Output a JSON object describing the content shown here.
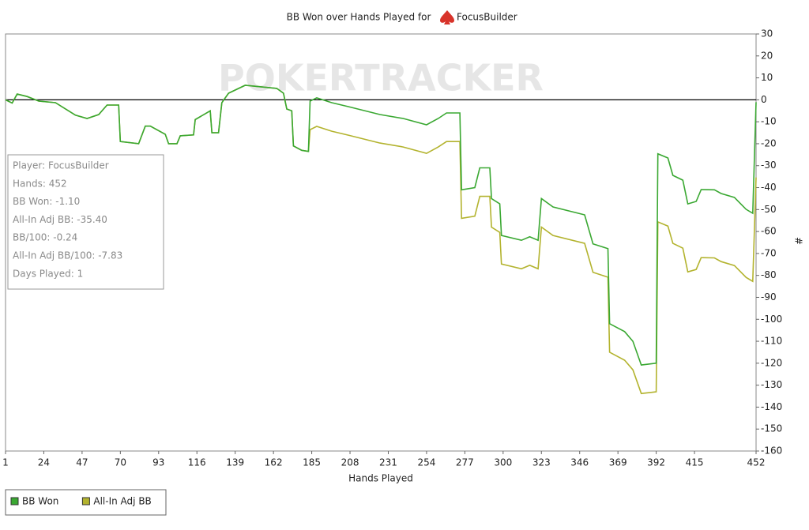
{
  "chart_data": {
    "type": "line",
    "title": "BB Won over Hands Played for",
    "player": "FocusBuilder",
    "watermark": "POKERTRACKER",
    "x_label": "Hands Played",
    "y_label": "#",
    "x": [
      1,
      5,
      8,
      14,
      21,
      31,
      43,
      50,
      57,
      62,
      69,
      70,
      81,
      85,
      88,
      97,
      99,
      104,
      106,
      114,
      115,
      124,
      125,
      129,
      131,
      135,
      145,
      164,
      168,
      170,
      173,
      174,
      179,
      183,
      184,
      188,
      197,
      207,
      226,
      240,
      254,
      261,
      266,
      274,
      275,
      283,
      286,
      292,
      293,
      298,
      299,
      311,
      316,
      321,
      323,
      330,
      349,
      354,
      363,
      364,
      373,
      378,
      383,
      392,
      393,
      399,
      402,
      408,
      411,
      416,
      419,
      427,
      431,
      439,
      446,
      450,
      452
    ],
    "series": [
      {
        "name": "BB Won",
        "color": "#3aa832",
        "values": [
          0,
          -1.5,
          2.6,
          1.5,
          -0.6,
          -1.3,
          -7,
          -8.5,
          -6.7,
          -2.4,
          -2.4,
          -19,
          -20,
          -12,
          -12,
          -15.7,
          -20,
          -20,
          -16.4,
          -16,
          -9,
          -5,
          -15,
          -15,
          -1.3,
          3,
          6.6,
          5.2,
          3,
          -4.2,
          -5,
          -21,
          -23,
          -23.5,
          -0.6,
          0.9,
          -1.3,
          -3.1,
          -6.7,
          -8.5,
          -11.4,
          -8.5,
          -6,
          -6,
          -41,
          -40,
          -31,
          -31,
          -45,
          -47.4,
          -61.8,
          -64,
          -62.4,
          -64,
          -45,
          -48.8,
          -52.4,
          -65.6,
          -67.8,
          -102,
          -105.6,
          -110,
          -120.8,
          -120,
          -24.6,
          -26.5,
          -34.4,
          -36.6,
          -47.4,
          -46.3,
          -40.9,
          -41,
          -42.7,
          -44.5,
          -49.9,
          -51.7,
          -1.1
        ]
      },
      {
        "name": "All-In Adj BB",
        "color": "#b3b32e",
        "values": [
          0,
          -1.5,
          2.6,
          1.5,
          -0.6,
          -1.3,
          -7,
          -8.5,
          -6.7,
          -2.4,
          -2.4,
          -19,
          -20,
          -12,
          -12,
          -15.7,
          -20,
          -20,
          -16.4,
          -16,
          -9,
          -5,
          -15,
          -15,
          -1.3,
          3,
          6.6,
          5.2,
          3,
          -4.2,
          -5,
          -21,
          -23,
          -23.5,
          -13.6,
          -12.1,
          -14.3,
          -16.1,
          -19.7,
          -21.5,
          -24.4,
          -21.5,
          -19,
          -19,
          -54,
          -53,
          -44,
          -44,
          -58,
          -60.4,
          -74.8,
          -77,
          -75.4,
          -77,
          -58,
          -61.8,
          -65.4,
          -78.6,
          -80.8,
          -115,
          -118.6,
          -123,
          -133.8,
          -133,
          -55.6,
          -57.5,
          -65.4,
          -67.6,
          -78.4,
          -77.3,
          -71.9,
          -72,
          -73.7,
          -75.5,
          -80.9,
          -82.7,
          -35.4
        ]
      }
    ],
    "xlim": [
      1,
      452
    ],
    "xticks": [
      1,
      24,
      47,
      70,
      93,
      116,
      139,
      162,
      185,
      208,
      231,
      254,
      277,
      300,
      323,
      346,
      369,
      392,
      415,
      452
    ],
    "ylim": [
      -160,
      30
    ],
    "yticks": [
      30,
      20,
      10,
      0,
      -10,
      -20,
      -30,
      -40,
      -50,
      -60,
      -70,
      -80,
      -90,
      -100,
      -110,
      -120,
      -130,
      -140,
      -150,
      -160
    ],
    "hline": 0,
    "info_box": [
      "Player: FocusBuilder",
      "Hands: 452",
      "BB Won: -1.10",
      "All-In Adj BB: -35.40",
      "BB/100: -0.24",
      "All-In Adj BB/100: -7.83",
      "Days Played: 1"
    ],
    "legend": "bottom-left"
  }
}
